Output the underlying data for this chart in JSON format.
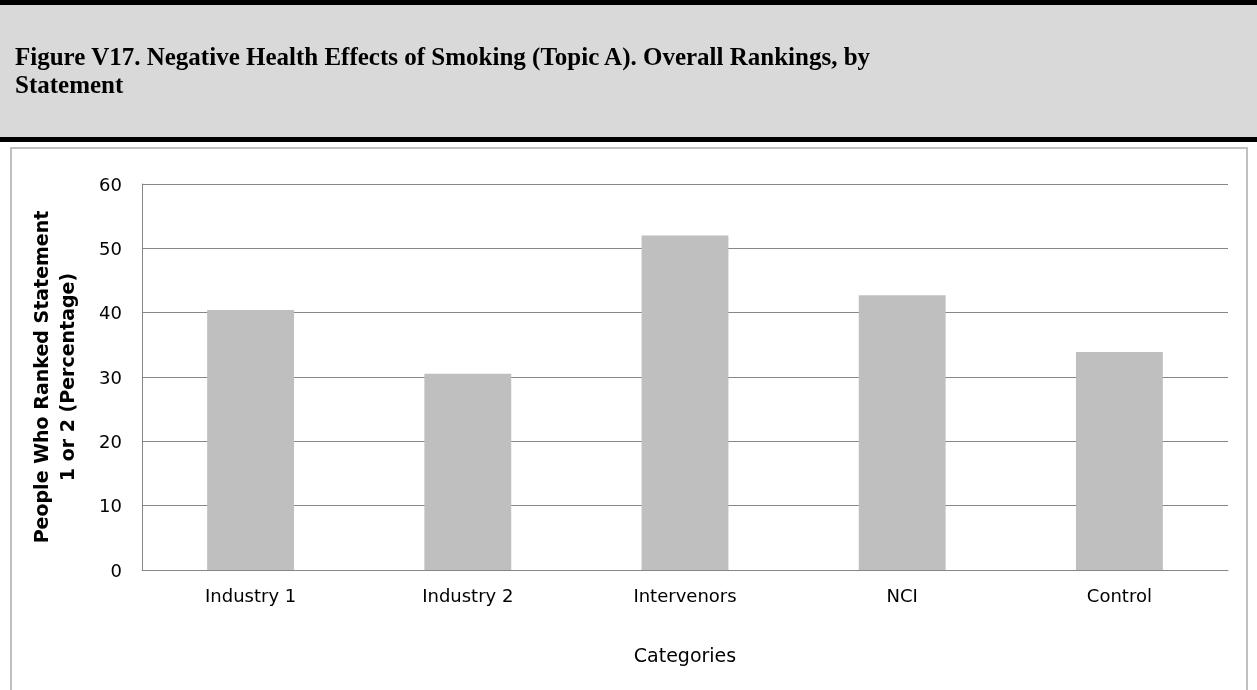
{
  "chart_data": {
    "type": "bar",
    "title": "Figure V17. Negative Health Effects of Smoking (Topic A).  Overall Rankings, by Statement",
    "categories": [
      "Industry 1",
      "Industry 2",
      "Intervenors",
      "NCI",
      "Control"
    ],
    "values": [
      40.4,
      30.5,
      52,
      42.7,
      33.9
    ],
    "color": "#bfbfbf",
    "xlabel": "Categories",
    "ylabel": "People Who Ranked Statement\n1 or 2 (Percentage)",
    "ylim": [
      0,
      60
    ],
    "yticks": [
      0,
      10,
      20,
      30,
      40,
      50,
      60
    ],
    "grid": "y"
  }
}
